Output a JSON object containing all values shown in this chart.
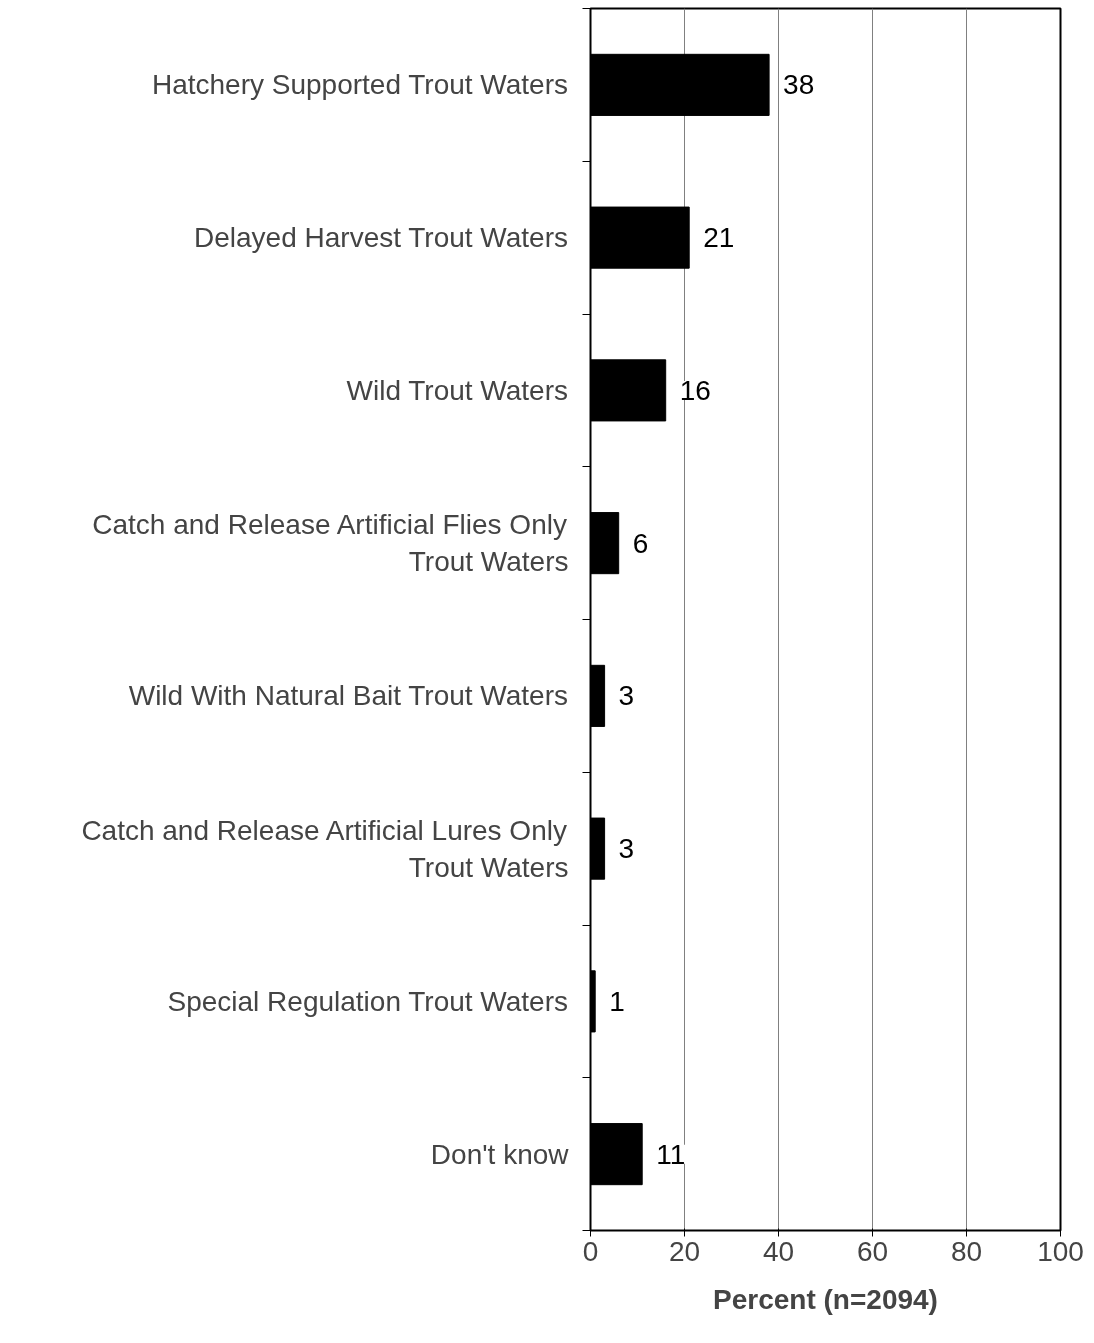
{
  "chart_data": {
    "type": "bar",
    "orientation": "horizontal",
    "xlabel": "Percent (n=2094)",
    "categories": [
      "Hatchery Supported Trout Waters",
      "Delayed Harvest Trout Waters",
      "Wild Trout Waters",
      "Catch and Release Artificial Flies Only Trout Waters",
      "Wild With Natural Bait Trout Waters",
      "Catch and Release Artificial Lures Only Trout Waters",
      "Special Regulation Trout Waters",
      "Don't know"
    ],
    "values": [
      38,
      21,
      16,
      6,
      3,
      3,
      1,
      11
    ],
    "color": "#000000",
    "data_labels": true,
    "xlim": [
      0,
      100
    ],
    "xticks": [
      0,
      20,
      40,
      60,
      80,
      100
    ],
    "grid": "x"
  }
}
